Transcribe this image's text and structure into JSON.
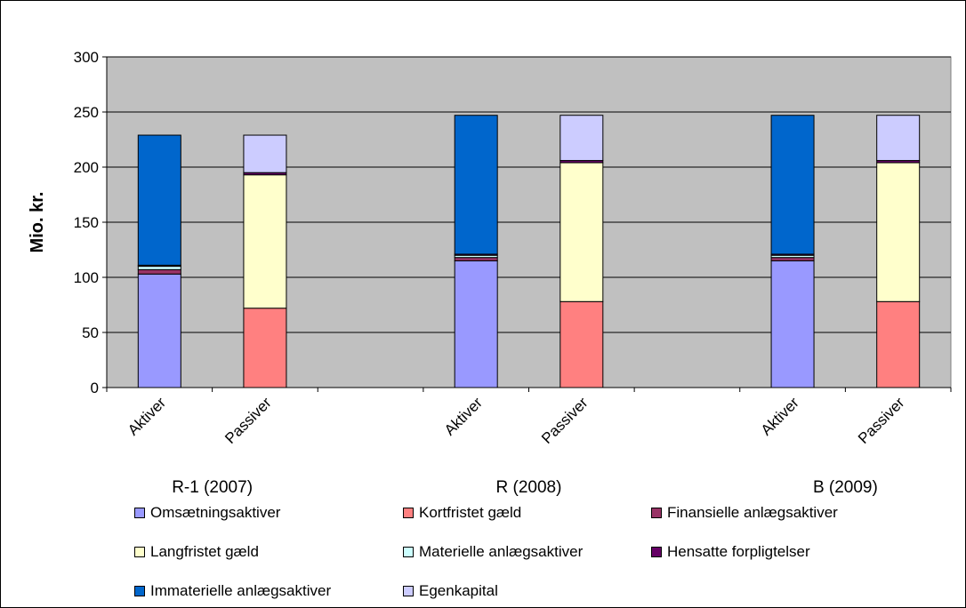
{
  "chart_data": {
    "type": "bar",
    "stacked": true,
    "ylabel": "Mio. kr.",
    "ylim": [
      0,
      300
    ],
    "yticks": [
      0,
      50,
      100,
      150,
      200,
      250,
      300
    ],
    "grid": true,
    "plot_background": "#c0c0c0",
    "groups": [
      {
        "label": "R-1 (2007)",
        "bars": [
          "Aktiver",
          "Passiver"
        ]
      },
      {
        "label": "R (2008)",
        "bars": [
          "Aktiver",
          "Passiver"
        ]
      },
      {
        "label": "B (2009)",
        "bars": [
          "Aktiver",
          "Passiver"
        ]
      }
    ],
    "categories": [
      "Aktiver",
      "Passiver",
      "Aktiver",
      "Passiver",
      "Aktiver",
      "Passiver"
    ],
    "series": [
      {
        "name": "Omsætningsaktiver",
        "color": "#9999ff",
        "values": [
          103,
          0,
          115,
          0,
          115,
          0
        ]
      },
      {
        "name": "Kortfristet gæld",
        "color": "#ff8080",
        "values": [
          0,
          72,
          0,
          78,
          0,
          78
        ]
      },
      {
        "name": "Finansielle anlægsaktiver",
        "color": "#993366",
        "values": [
          4,
          0,
          3,
          0,
          3,
          0
        ]
      },
      {
        "name": "Langfristet gæld",
        "color": "#ffffcc",
        "values": [
          0,
          121,
          0,
          126,
          0,
          126
        ]
      },
      {
        "name": "Materielle anlægsaktiver",
        "color": "#ccffff",
        "values": [
          3,
          0,
          2,
          0,
          2,
          0
        ]
      },
      {
        "name": "Hensatte forpligtelser",
        "color": "#660066",
        "values": [
          1,
          2,
          1,
          2,
          1,
          2
        ]
      },
      {
        "name": "Immaterielle anlægsaktiver",
        "color": "#0066cc",
        "values": [
          118,
          0,
          126,
          0,
          126,
          0
        ]
      },
      {
        "name": "Egenkapital",
        "color": "#ccccff",
        "values": [
          0,
          34,
          0,
          41,
          0,
          41
        ]
      }
    ],
    "legend_position": "bottom"
  }
}
